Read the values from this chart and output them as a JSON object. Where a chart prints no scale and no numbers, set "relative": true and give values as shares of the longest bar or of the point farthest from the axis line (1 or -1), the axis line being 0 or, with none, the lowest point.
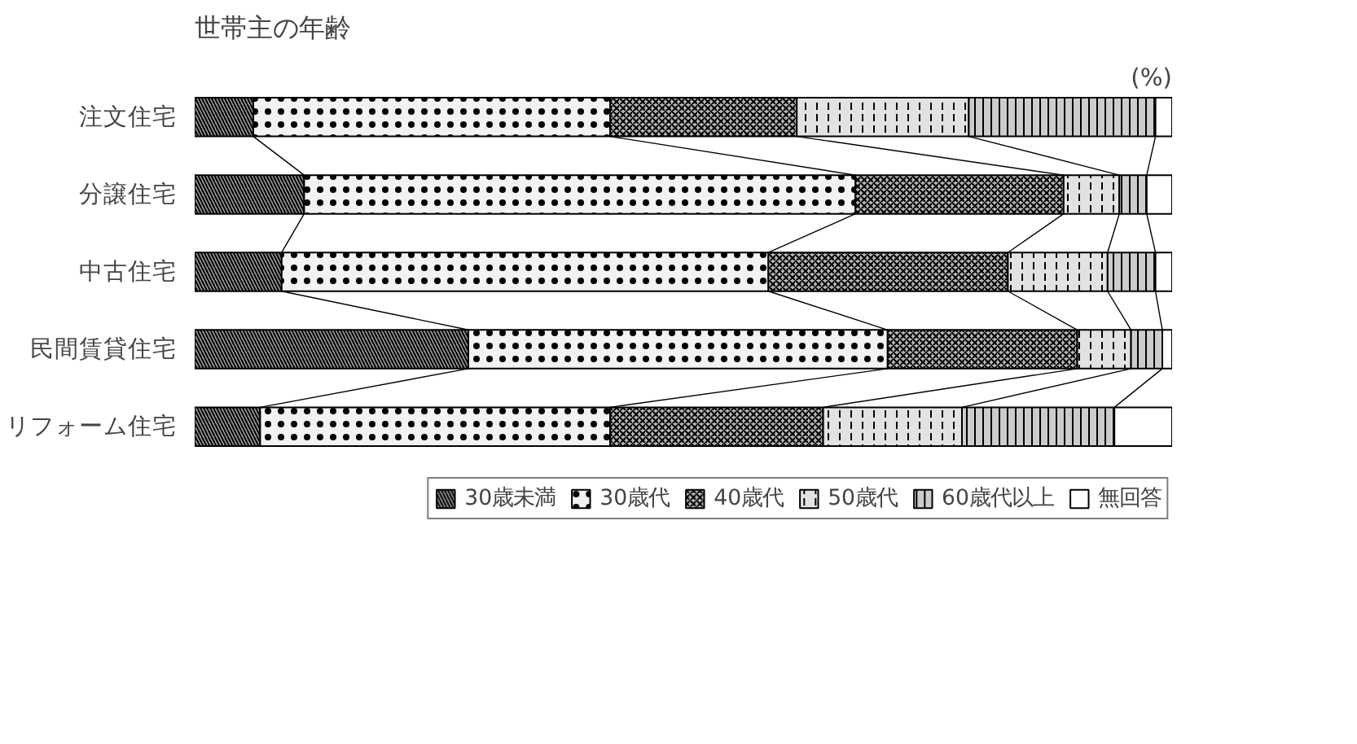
{
  "chart_data": {
    "type": "bar",
    "orientation": "horizontal",
    "stacked": true,
    "relative": true,
    "title": "世帯主の年齢",
    "annotations": [
      "(%)"
    ],
    "legend": "bottom",
    "categories": [
      "注文住宅",
      "分譲住宅",
      "中古住宅",
      "民間賃貸住宅",
      "リフォーム住宅"
    ],
    "series": [
      {
        "name": "30歳未満",
        "color": "#9a9a9a",
        "values": [
          0.06,
          0.112,
          0.089,
          0.28,
          0.067
        ]
      },
      {
        "name": "30歳代",
        "color": "#f2f2f2",
        "values": [
          0.365,
          0.564,
          0.498,
          0.429,
          0.358
        ]
      },
      {
        "name": "40歳代",
        "color": "#b4b4b4",
        "values": [
          0.191,
          0.213,
          0.245,
          0.194,
          0.218
        ]
      },
      {
        "name": "50歳代",
        "color": "#e2e2e2",
        "values": [
          0.176,
          0.057,
          0.102,
          0.055,
          0.142
        ]
      },
      {
        "name": "60歳代以上",
        "color": "#cccccc",
        "values": [
          0.191,
          0.028,
          0.049,
          0.032,
          0.156
        ]
      },
      {
        "name": "無回答",
        "color": "#ffffff",
        "values": [
          0.017,
          0.026,
          0.017,
          0.01,
          0.059
        ]
      }
    ]
  }
}
